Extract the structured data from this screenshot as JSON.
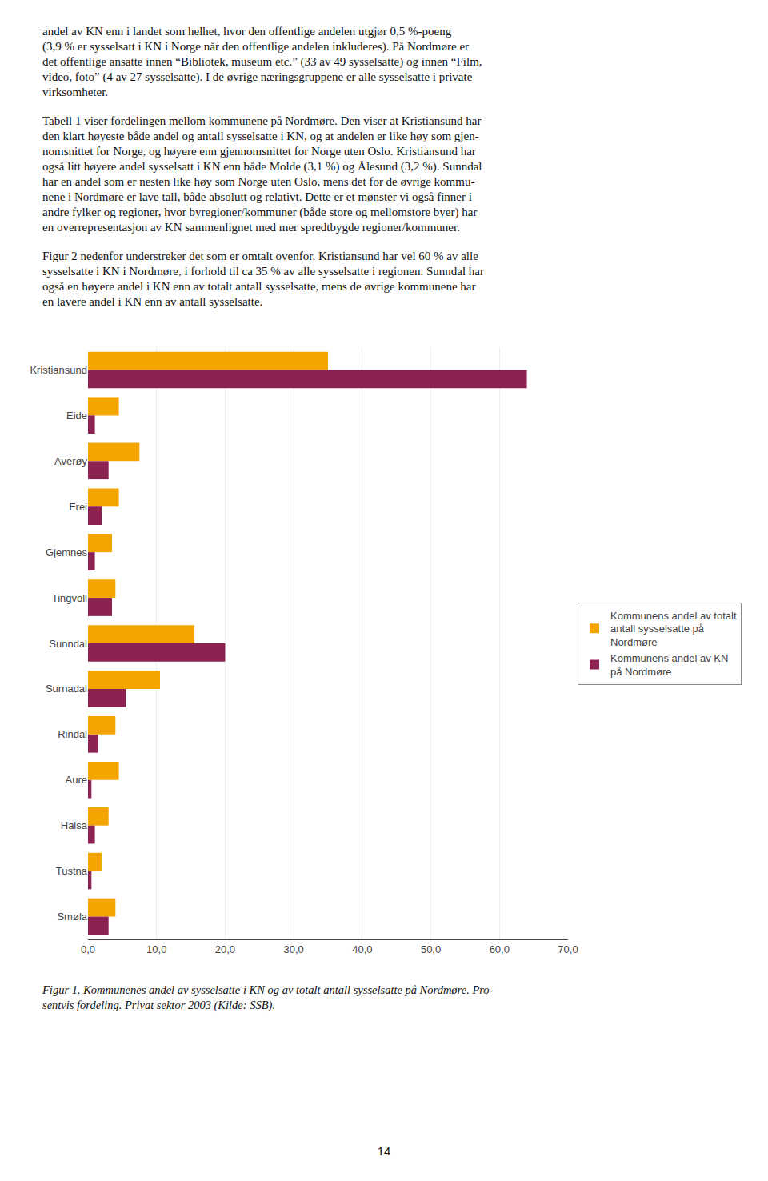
{
  "text_blocks": [
    "andel av KN enn i landet som helhet, hvor den offentlige andelen utgjør 0,5 %-poeng\n(3,9 % er sysselsatt i KN i Norge når den offentlige andelen inkluderes). På Nordmøre er\ndet offentlige ansatte innen “Bibliotek, museum etc.” (33 av 49 sysselsatte) og innen “Film,\nvideo, foto” (4 av 27 sysselsatte). I de øvrige næringsgruppene er alle sysselsatte i private\nvirksomheter.",
    "Tabell 1 viser fordelingen mellom kommunene på Nordmøre. Den viser at Kristiansund har\nden klart høyeste både andel og antall sysselsatte i KN, og at andelen er like høy som gjen-\nnomsnittet for Norge, og høyere enn gjennomsnittet for Norge uten Oslo. Kristiansund har\nogså litt høyere andel sysselsatt i KN enn både Molde (3,1 %) og Ålesund (3,2 %). Sunndal\nhar en andel som er nesten like høy som Norge uten Oslo, mens det for de øvrige kommu-\nnene i Nordmøre er lave tall, både absolutt og relativt. Dette er et mønster vi også finner i\nandre fylker og regioner, hvor byregioner/kommuner (både store og mellomstore byer) har\nen overrepresentasjon av KN sammenlignet med mer spredtbygde regioner/kommuner.",
    "Figur 2 nedenfor understreker det som er omtalt ovenfor. Kristiansund har vel 60 % av alle\nsysselsatte i KN i Nordmøre, i forhold til ca 35 % av alle sysselsatte i regionen. Sunndal har\nogså en høyere andel i KN enn av totalt antall sysselsatte, mens de øvrige kommunene har\nen lavere andel i KN enn av antall sysselsatte."
  ],
  "chart_data": {
    "type": "bar",
    "orientation": "horizontal",
    "caption": "Figur 1. Kommunenes andel av sysselsatte i KN og av totalt antall sysselsatte på Nordmøre. Pro-\nsentvis fordeling. Privat sektor 2003 (Kilde: SSB).",
    "categories": [
      "Kristiansund",
      "Eide",
      "Averøy",
      "Frei",
      "Gjemnes",
      "Tingvoll",
      "Sunndal",
      "Surnadal",
      "Rindal",
      "Aure",
      "Halsa",
      "Tustna",
      "Smøla"
    ],
    "series": [
      {
        "name": "Kommunens andel av totalt\nantall sysselsatte på\nNordmøre",
        "color": "#F5A500",
        "values": [
          35.0,
          4.5,
          7.5,
          4.5,
          3.5,
          4.0,
          15.5,
          10.5,
          4.0,
          4.5,
          3.0,
          2.0,
          4.0
        ]
      },
      {
        "name": "Kommunens andel av KN\npå Nordmøre",
        "color": "#8B2252",
        "values": [
          64.0,
          1.0,
          3.0,
          2.0,
          1.0,
          3.5,
          20.0,
          5.5,
          1.5,
          0.5,
          1.0,
          0.5,
          3.0
        ]
      }
    ],
    "xlim": [
      0,
      70
    ],
    "xticks": [
      {
        "value": 0,
        "label": "0,0"
      },
      {
        "value": 10,
        "label": "10,0"
      },
      {
        "value": 20,
        "label": "20,0"
      },
      {
        "value": 30,
        "label": "30,0"
      },
      {
        "value": 40,
        "label": "40,0"
      },
      {
        "value": 50,
        "label": "50,0"
      },
      {
        "value": 60,
        "label": "60,0"
      },
      {
        "value": 70,
        "label": "70,0"
      }
    ],
    "grid": true,
    "legend": "right"
  },
  "page_number": "14"
}
